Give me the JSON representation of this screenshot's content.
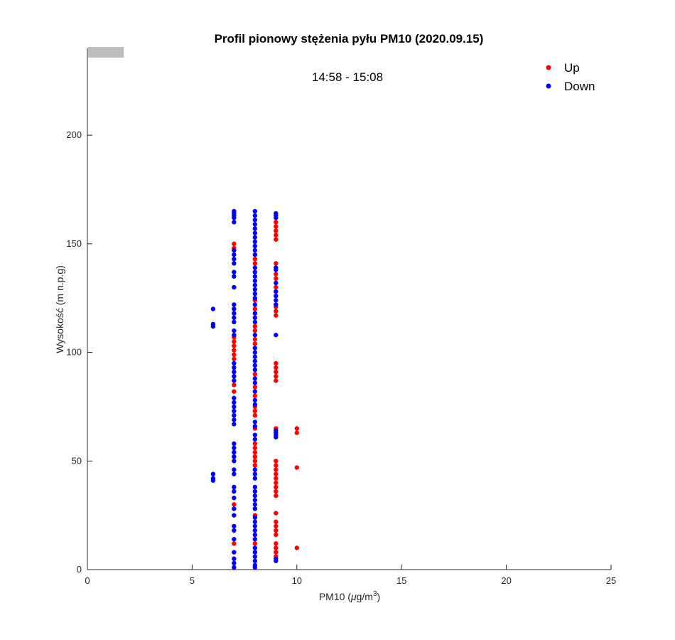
{
  "chart_data": {
    "type": "scatter",
    "title": "Profil pionowy stężenia pyłu PM10 (2020.09.15)",
    "subtitle": "14:58 - 15:08",
    "xlabel_prefix": "PM10 (",
    "xlabel_mu": "μ",
    "xlabel_unit": "g/m",
    "xlabel_exp": "3",
    "xlabel_suffix": ")",
    "ylabel": "Wysokość (m n.p.g)",
    "xlim": [
      0,
      25
    ],
    "ylim": [
      0,
      240
    ],
    "xticks": [
      0,
      5,
      10,
      15,
      20,
      25
    ],
    "yticks": [
      0,
      50,
      100,
      150,
      200
    ],
    "legend_position": "top-right",
    "grey_marker_value": [
      0,
      1.7
    ],
    "series": [
      {
        "name": "Up",
        "color": "#ff0000",
        "points": [
          [
            7,
            150
          ],
          [
            7,
            148
          ],
          [
            7,
            107
          ],
          [
            7,
            105
          ],
          [
            7,
            103
          ],
          [
            7,
            101
          ],
          [
            7,
            99
          ],
          [
            7,
            97
          ],
          [
            7,
            85
          ],
          [
            7,
            82
          ],
          [
            7,
            30
          ],
          [
            7,
            12
          ],
          [
            8,
            143
          ],
          [
            8,
            141
          ],
          [
            8,
            124
          ],
          [
            8,
            120
          ],
          [
            8,
            112
          ],
          [
            8,
            110
          ],
          [
            8,
            106
          ],
          [
            8,
            104
          ],
          [
            8,
            90
          ],
          [
            8,
            84
          ],
          [
            8,
            80
          ],
          [
            8,
            75
          ],
          [
            8,
            73
          ],
          [
            8,
            71
          ],
          [
            8,
            65
          ],
          [
            8,
            58
          ],
          [
            8,
            56
          ],
          [
            8,
            54
          ],
          [
            8,
            52
          ],
          [
            8,
            50
          ],
          [
            8,
            48
          ],
          [
            8,
            25
          ],
          [
            8,
            12
          ],
          [
            9,
            160
          ],
          [
            9,
            158
          ],
          [
            9,
            156
          ],
          [
            9,
            154
          ],
          [
            9,
            152
          ],
          [
            9,
            141
          ],
          [
            9,
            136
          ],
          [
            9,
            134
          ],
          [
            9,
            130
          ],
          [
            9,
            121
          ],
          [
            9,
            119
          ],
          [
            9,
            117
          ],
          [
            9,
            95
          ],
          [
            9,
            93
          ],
          [
            9,
            91
          ],
          [
            9,
            89
          ],
          [
            9,
            87
          ],
          [
            9,
            65
          ],
          [
            9,
            50
          ],
          [
            9,
            48
          ],
          [
            9,
            46
          ],
          [
            9,
            44
          ],
          [
            9,
            42
          ],
          [
            9,
            40
          ],
          [
            9,
            38
          ],
          [
            9,
            36
          ],
          [
            9,
            34
          ],
          [
            9,
            26
          ],
          [
            9,
            22
          ],
          [
            9,
            20
          ],
          [
            9,
            18
          ],
          [
            9,
            16
          ],
          [
            9,
            12
          ],
          [
            9,
            10
          ],
          [
            9,
            8
          ],
          [
            9,
            6
          ],
          [
            10,
            65
          ],
          [
            10,
            63
          ],
          [
            10,
            47
          ],
          [
            10,
            10
          ]
        ]
      },
      {
        "name": "Down",
        "color": "#0000ff",
        "points": [
          [
            6,
            120
          ],
          [
            6,
            113
          ],
          [
            6,
            112
          ],
          [
            6,
            44
          ],
          [
            6,
            42
          ],
          [
            6,
            41
          ],
          [
            7,
            165
          ],
          [
            7,
            164
          ],
          [
            7,
            163
          ],
          [
            7,
            162
          ],
          [
            7,
            160
          ],
          [
            7,
            147
          ],
          [
            7,
            145
          ],
          [
            7,
            143
          ],
          [
            7,
            141
          ],
          [
            7,
            137
          ],
          [
            7,
            135
          ],
          [
            7,
            130
          ],
          [
            7,
            122
          ],
          [
            7,
            120
          ],
          [
            7,
            118
          ],
          [
            7,
            116
          ],
          [
            7,
            114
          ],
          [
            7,
            110
          ],
          [
            7,
            108
          ],
          [
            7,
            95
          ],
          [
            7,
            93
          ],
          [
            7,
            91
          ],
          [
            7,
            89
          ],
          [
            7,
            87
          ],
          [
            7,
            79
          ],
          [
            7,
            77
          ],
          [
            7,
            75
          ],
          [
            7,
            73
          ],
          [
            7,
            71
          ],
          [
            7,
            69
          ],
          [
            7,
            67
          ],
          [
            7,
            58
          ],
          [
            7,
            56
          ],
          [
            7,
            54
          ],
          [
            7,
            52
          ],
          [
            7,
            50
          ],
          [
            7,
            46
          ],
          [
            7,
            44
          ],
          [
            7,
            38
          ],
          [
            7,
            36
          ],
          [
            7,
            33
          ],
          [
            7,
            28
          ],
          [
            7,
            25
          ],
          [
            7,
            20
          ],
          [
            7,
            18
          ],
          [
            7,
            14
          ],
          [
            7,
            8
          ],
          [
            7,
            5
          ],
          [
            7,
            3
          ],
          [
            7,
            1
          ],
          [
            8,
            165
          ],
          [
            8,
            163
          ],
          [
            8,
            161
          ],
          [
            8,
            159
          ],
          [
            8,
            157
          ],
          [
            8,
            155
          ],
          [
            8,
            153
          ],
          [
            8,
            151
          ],
          [
            8,
            149
          ],
          [
            8,
            147
          ],
          [
            8,
            145
          ],
          [
            8,
            139
          ],
          [
            8,
            137
          ],
          [
            8,
            135
          ],
          [
            8,
            133
          ],
          [
            8,
            131
          ],
          [
            8,
            129
          ],
          [
            8,
            127
          ],
          [
            8,
            125
          ],
          [
            8,
            122
          ],
          [
            8,
            118
          ],
          [
            8,
            116
          ],
          [
            8,
            114
          ],
          [
            8,
            108
          ],
          [
            8,
            102
          ],
          [
            8,
            100
          ],
          [
            8,
            98
          ],
          [
            8,
            96
          ],
          [
            8,
            94
          ],
          [
            8,
            92
          ],
          [
            8,
            88
          ],
          [
            8,
            86
          ],
          [
            8,
            82
          ],
          [
            8,
            78
          ],
          [
            8,
            76
          ],
          [
            8,
            68
          ],
          [
            8,
            66
          ],
          [
            8,
            62
          ],
          [
            8,
            60
          ],
          [
            8,
            46
          ],
          [
            8,
            44
          ],
          [
            8,
            42
          ],
          [
            8,
            38
          ],
          [
            8,
            36
          ],
          [
            8,
            34
          ],
          [
            8,
            32
          ],
          [
            8,
            30
          ],
          [
            8,
            28
          ],
          [
            8,
            24
          ],
          [
            8,
            22
          ],
          [
            8,
            20
          ],
          [
            8,
            18
          ],
          [
            8,
            16
          ],
          [
            8,
            14
          ],
          [
            8,
            10
          ],
          [
            8,
            8
          ],
          [
            8,
            6
          ],
          [
            8,
            4
          ],
          [
            8,
            2
          ],
          [
            8,
            1
          ],
          [
            9,
            164
          ],
          [
            9,
            163
          ],
          [
            9,
            162
          ],
          [
            9,
            139
          ],
          [
            9,
            138
          ],
          [
            9,
            132
          ],
          [
            9,
            128
          ],
          [
            9,
            126
          ],
          [
            9,
            124
          ],
          [
            9,
            122
          ],
          [
            9,
            108
          ],
          [
            9,
            64
          ],
          [
            9,
            63
          ],
          [
            9,
            62
          ],
          [
            9,
            61
          ],
          [
            9,
            5
          ],
          [
            9,
            4
          ]
        ]
      }
    ]
  }
}
